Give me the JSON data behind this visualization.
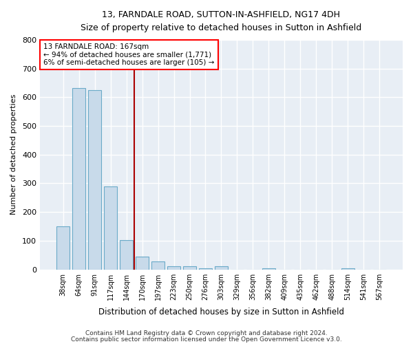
{
  "title1": "13, FARNDALE ROAD, SUTTON-IN-ASHFIELD, NG17 4DH",
  "title2": "Size of property relative to detached houses in Sutton in Ashfield",
  "xlabel": "Distribution of detached houses by size in Sutton in Ashfield",
  "ylabel": "Number of detached properties",
  "categories": [
    "38sqm",
    "64sqm",
    "91sqm",
    "117sqm",
    "144sqm",
    "170sqm",
    "197sqm",
    "223sqm",
    "250sqm",
    "276sqm",
    "303sqm",
    "329sqm",
    "356sqm",
    "382sqm",
    "409sqm",
    "435sqm",
    "462sqm",
    "488sqm",
    "514sqm",
    "541sqm",
    "567sqm"
  ],
  "values": [
    150,
    632,
    625,
    290,
    102,
    45,
    28,
    10,
    10,
    5,
    10,
    0,
    0,
    5,
    0,
    0,
    0,
    0,
    5,
    0,
    0
  ],
  "bar_color": "#c8daea",
  "bar_edge_color": "#6aaac8",
  "red_line_index": 5,
  "annotation_line1": "13 FARNDALE ROAD: 167sqm",
  "annotation_line2": "← 94% of detached houses are smaller (1,771)",
  "annotation_line3": "6% of semi-detached houses are larger (105) →",
  "annotation_box_color": "white",
  "annotation_box_edge": "red",
  "red_line_color": "#aa0000",
  "footer1": "Contains HM Land Registry data © Crown copyright and database right 2024.",
  "footer2": "Contains public sector information licensed under the Open Government Licence v3.0.",
  "background_color": "#ffffff",
  "plot_bg_color": "#e8eef5",
  "ylim": [
    0,
    800
  ],
  "yticks": [
    0,
    100,
    200,
    300,
    400,
    500,
    600,
    700,
    800
  ]
}
